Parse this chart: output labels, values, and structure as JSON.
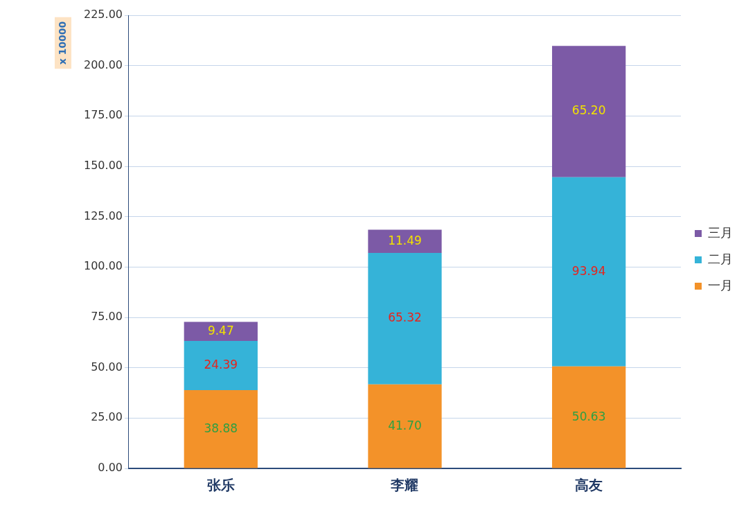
{
  "chart_data": {
    "type": "bar",
    "stacked": true,
    "ylabel": "x 10000",
    "categories": [
      "张乐",
      "李耀",
      "高友"
    ],
    "series": [
      {
        "name": "一月",
        "color": "#f39229",
        "values": [
          38.88,
          41.7,
          50.63
        ],
        "value_labels": [
          "38.88",
          "41.70",
          "50.63"
        ]
      },
      {
        "name": "二月",
        "color": "#35b3d8",
        "values": [
          24.39,
          65.32,
          93.94
        ],
        "value_labels": [
          "24.39",
          "65.32",
          "93.94"
        ]
      },
      {
        "name": "三月",
        "color": "#7c5aa6",
        "values": [
          9.47,
          11.49,
          65.2
        ],
        "value_labels": [
          "9.47",
          "11.49",
          "65.20"
        ]
      }
    ],
    "ylim": [
      0,
      225
    ],
    "yticks": [
      {
        "value": 0,
        "label": "0.00"
      },
      {
        "value": 25,
        "label": "25.00"
      },
      {
        "value": 50,
        "label": "50.00"
      },
      {
        "value": 75,
        "label": "75.00"
      },
      {
        "value": 100,
        "label": "100.00"
      },
      {
        "value": 125,
        "label": "125.00"
      },
      {
        "value": 150,
        "label": "150.00"
      },
      {
        "value": 175,
        "label": "175.00"
      },
      {
        "value": 200,
        "label": "200.00"
      },
      {
        "value": 225,
        "label": "225.00"
      }
    ],
    "grid": "y",
    "legend": "right"
  }
}
